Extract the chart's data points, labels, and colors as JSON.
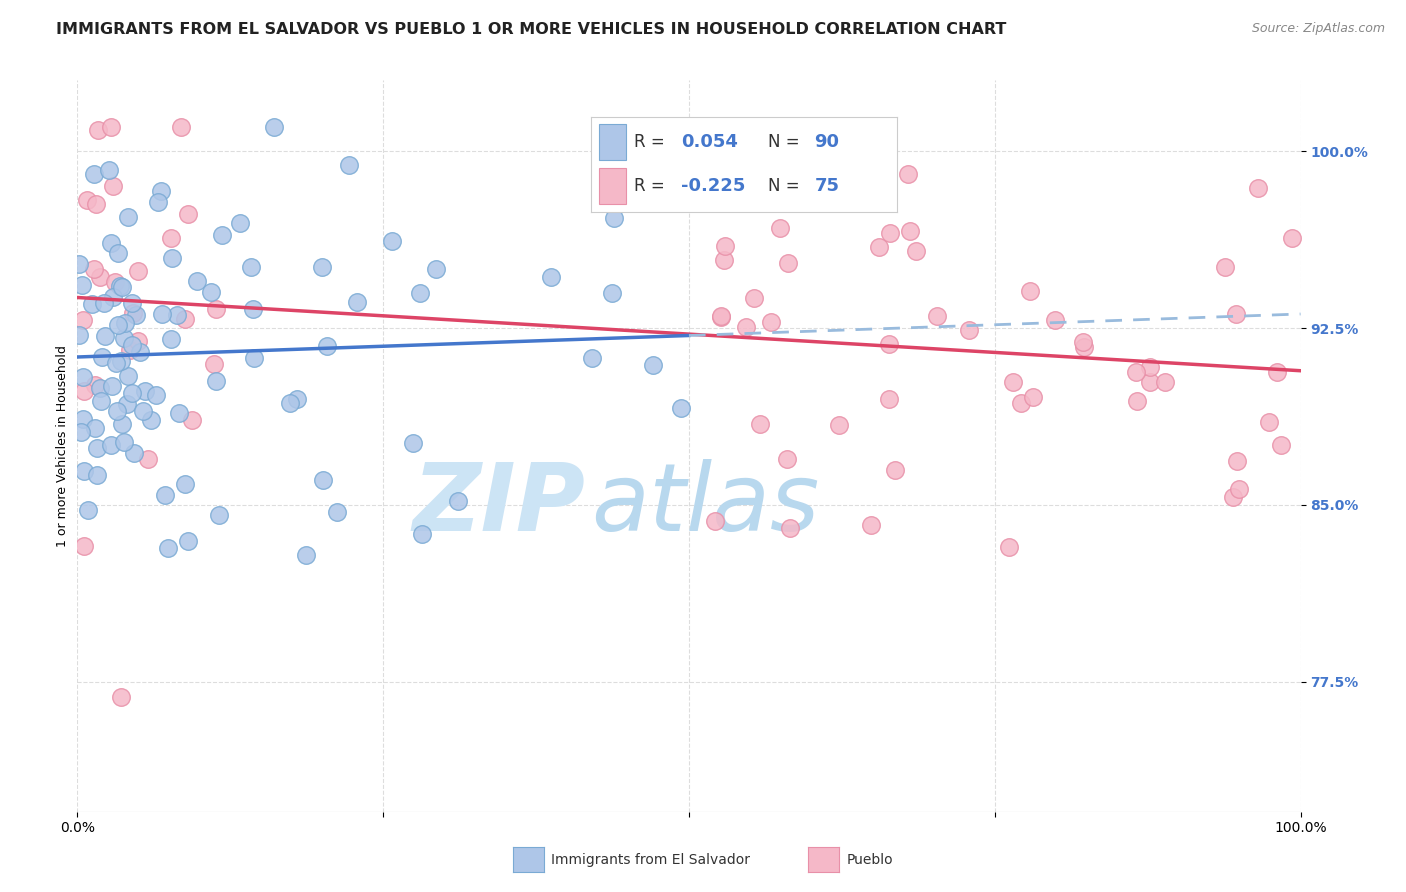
{
  "title": "IMMIGRANTS FROM EL SALVADOR VS PUEBLO 1 OR MORE VEHICLES IN HOUSEHOLD CORRELATION CHART",
  "source": "Source: ZipAtlas.com",
  "ylabel": "1 or more Vehicles in Household",
  "ytick_labels": [
    "77.5%",
    "85.0%",
    "92.5%",
    "100.0%"
  ],
  "ytick_values": [
    0.775,
    0.85,
    0.925,
    1.0
  ],
  "legend_label1": "Immigrants from El Salvador",
  "legend_label2": "Pueblo",
  "R1": "0.054",
  "N1": "90",
  "R2": "-0.225",
  "N2": "75",
  "color_blue_fill": "#aec6e8",
  "color_blue_edge": "#7aaad4",
  "color_pink_fill": "#f5b8c8",
  "color_pink_edge": "#e890a8",
  "color_trendline_blue_solid": "#4477cc",
  "color_trendline_blue_dash": "#99bbdd",
  "color_trendline_pink": "#dd4466",
  "watermark_zip": "#cce0f0",
  "watermark_atlas": "#c0d8ee",
  "background_color": "#ffffff",
  "grid_color": "#dddddd",
  "title_fontsize": 11.5,
  "source_fontsize": 9,
  "axis_label_fontsize": 9,
  "tick_fontsize": 10,
  "legend_fontsize": 13,
  "xlim": [
    0.0,
    1.0
  ],
  "ylim": [
    0.72,
    1.03
  ]
}
